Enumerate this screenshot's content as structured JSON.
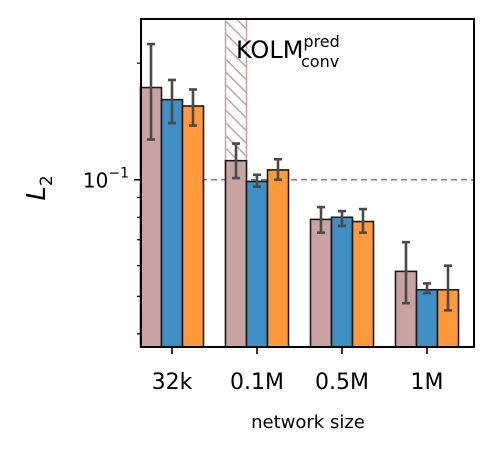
{
  "chart_data": {
    "type": "bar",
    "title": "KOLM",
    "title_sup": "pred",
    "title_sub": "conv",
    "xlabel": "network size",
    "ylabel": "L",
    "ylabel_sub": "2",
    "ytick_label": "10",
    "ytick_exp": "−1",
    "yscale": "log",
    "ylim": [
      0.037,
      0.26
    ],
    "reference_line": 0.1,
    "categories": [
      "32k",
      "0.1M",
      "0.5M",
      "1M"
    ],
    "highlight_category": "0.1M",
    "series": [
      {
        "color": "#c9a3a3",
        "values": [
          0.173,
          0.112,
          0.079,
          0.058
        ],
        "err_low": [
          0.127,
          0.101,
          0.073,
          0.048
        ],
        "err_high": [
          0.224,
          0.124,
          0.085,
          0.069
        ]
      },
      {
        "color": "#3f8ec4",
        "values": [
          0.161,
          0.099,
          0.08,
          0.052
        ],
        "err_low": [
          0.14,
          0.096,
          0.076,
          0.051
        ],
        "err_high": [
          0.181,
          0.103,
          0.083,
          0.054
        ]
      },
      {
        "color": "#ff9a3c",
        "values": [
          0.155,
          0.106,
          0.078,
          0.052
        ],
        "err_low": [
          0.138,
          0.1,
          0.073,
          0.046
        ],
        "err_high": [
          0.171,
          0.113,
          0.084,
          0.06
        ]
      }
    ]
  }
}
